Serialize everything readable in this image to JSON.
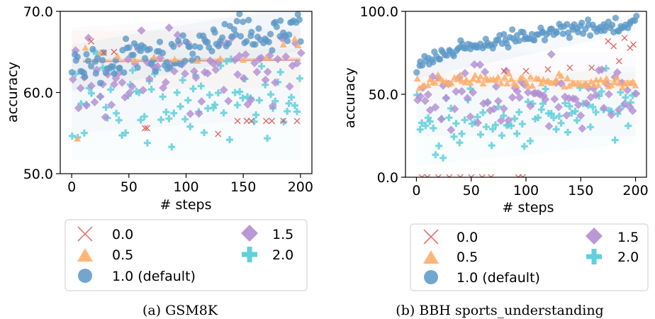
{
  "chart_data": [
    {
      "type": "scatter",
      "caption": "(a) GSM8K",
      "xlabel": "# steps",
      "ylabel": "accuracy",
      "xlim": [
        -10,
        210
      ],
      "ylim": [
        50,
        70
      ],
      "xticks": [
        "0",
        "50",
        "100",
        "150",
        "200"
      ],
      "yticks": [
        "50.0",
        "60.0",
        "70.0"
      ],
      "grid": false,
      "legend_position": "below",
      "series": [
        {
          "name": "0.0",
          "marker": "x",
          "color": "#d9534f",
          "points": [
            [
              17,
              66.3
            ],
            [
              28,
              64.9
            ],
            [
              37,
              65.0
            ],
            [
              64,
              55.6
            ],
            [
              66,
              55.6
            ],
            [
              128,
              54.9
            ],
            [
              145,
              56.5
            ],
            [
              153,
              56.5
            ],
            [
              157,
              56.5
            ],
            [
              170,
              56.5
            ],
            [
              175,
              56.5
            ],
            [
              185,
              56.5
            ],
            [
              197,
              56.5
            ]
          ],
          "trend_start": 63.8,
          "trend_end": 64.0
        },
        {
          "name": "0.5",
          "marker": "triangle",
          "color": "#fdae6b",
          "points": [
            [
              5,
              54.3
            ],
            [
              12,
              65.5
            ],
            [
              25,
              64.9
            ],
            [
              40,
              64.5
            ],
            [
              55,
              64.0
            ],
            [
              72,
              64.4
            ],
            [
              90,
              64.1
            ],
            [
              110,
              63.9
            ],
            [
              130,
              64.2
            ],
            [
              150,
              64.0
            ],
            [
              170,
              64.3
            ],
            [
              185,
              65.9
            ],
            [
              195,
              66.6
            ],
            [
              198,
              65.8
            ]
          ],
          "trend_start": 64.0,
          "trend_end": 64.2
        },
        {
          "name": "1.0 (default)",
          "marker": "circle",
          "color": "#5b97c6",
          "trend_start": 63.0,
          "trend_end": 68.0,
          "spread": 1.6
        },
        {
          "name": "1.5",
          "marker": "diamond",
          "color": "#b28dd2",
          "trend_start": 61.5,
          "trend_end": 63.5,
          "spread": 3.6
        },
        {
          "name": "2.0",
          "marker": "plus",
          "color": "#5fd0dc",
          "trend_start": 58.5,
          "trend_end": 58.5,
          "spread": 3.8
        }
      ]
    },
    {
      "type": "scatter",
      "caption": "(b) BBH sports_understanding",
      "xlabel": "# steps",
      "ylabel": "accuracy",
      "xlim": [
        -10,
        210
      ],
      "ylim": [
        0,
        100
      ],
      "xticks": [
        "0",
        "50",
        "100",
        "150",
        "200"
      ],
      "yticks": [
        "0.0",
        "50.0",
        "100.0"
      ],
      "grid": false,
      "legend_position": "below",
      "series": [
        {
          "name": "0.0",
          "marker": "x",
          "color": "#d9534f",
          "points": [
            [
              5,
              0
            ],
            [
              10,
              0
            ],
            [
              20,
              0
            ],
            [
              30,
              0
            ],
            [
              40,
              0
            ],
            [
              50,
              0
            ],
            [
              60,
              0
            ],
            [
              68,
              0
            ],
            [
              93,
              0
            ],
            [
              97,
              0
            ],
            [
              80,
              64
            ],
            [
              100,
              64
            ],
            [
              120,
              65
            ],
            [
              140,
              66
            ],
            [
              160,
              66
            ],
            [
              175,
              82
            ],
            [
              180,
              79
            ],
            [
              185,
              70
            ],
            [
              190,
              84
            ],
            [
              195,
              78
            ],
            [
              198,
              80
            ]
          ],
          "trend_start": 0,
          "trend_end": 66
        },
        {
          "name": "0.5",
          "marker": "triangle",
          "color": "#fdae6b",
          "trend_start": 58,
          "trend_end": 58,
          "spread": 3
        },
        {
          "name": "1.0 (default)",
          "marker": "circle",
          "color": "#5b97c6",
          "trend_start": 65,
          "trend_end": 93,
          "spread": 3
        },
        {
          "name": "1.5",
          "marker": "diamond",
          "color": "#b28dd2",
          "trend_start": 50,
          "trend_end": 50,
          "spread": 14
        },
        {
          "name": "2.0",
          "marker": "plus",
          "color": "#5fd0dc",
          "trend_start": 30,
          "trend_end": 44,
          "spread": 13
        }
      ]
    }
  ]
}
